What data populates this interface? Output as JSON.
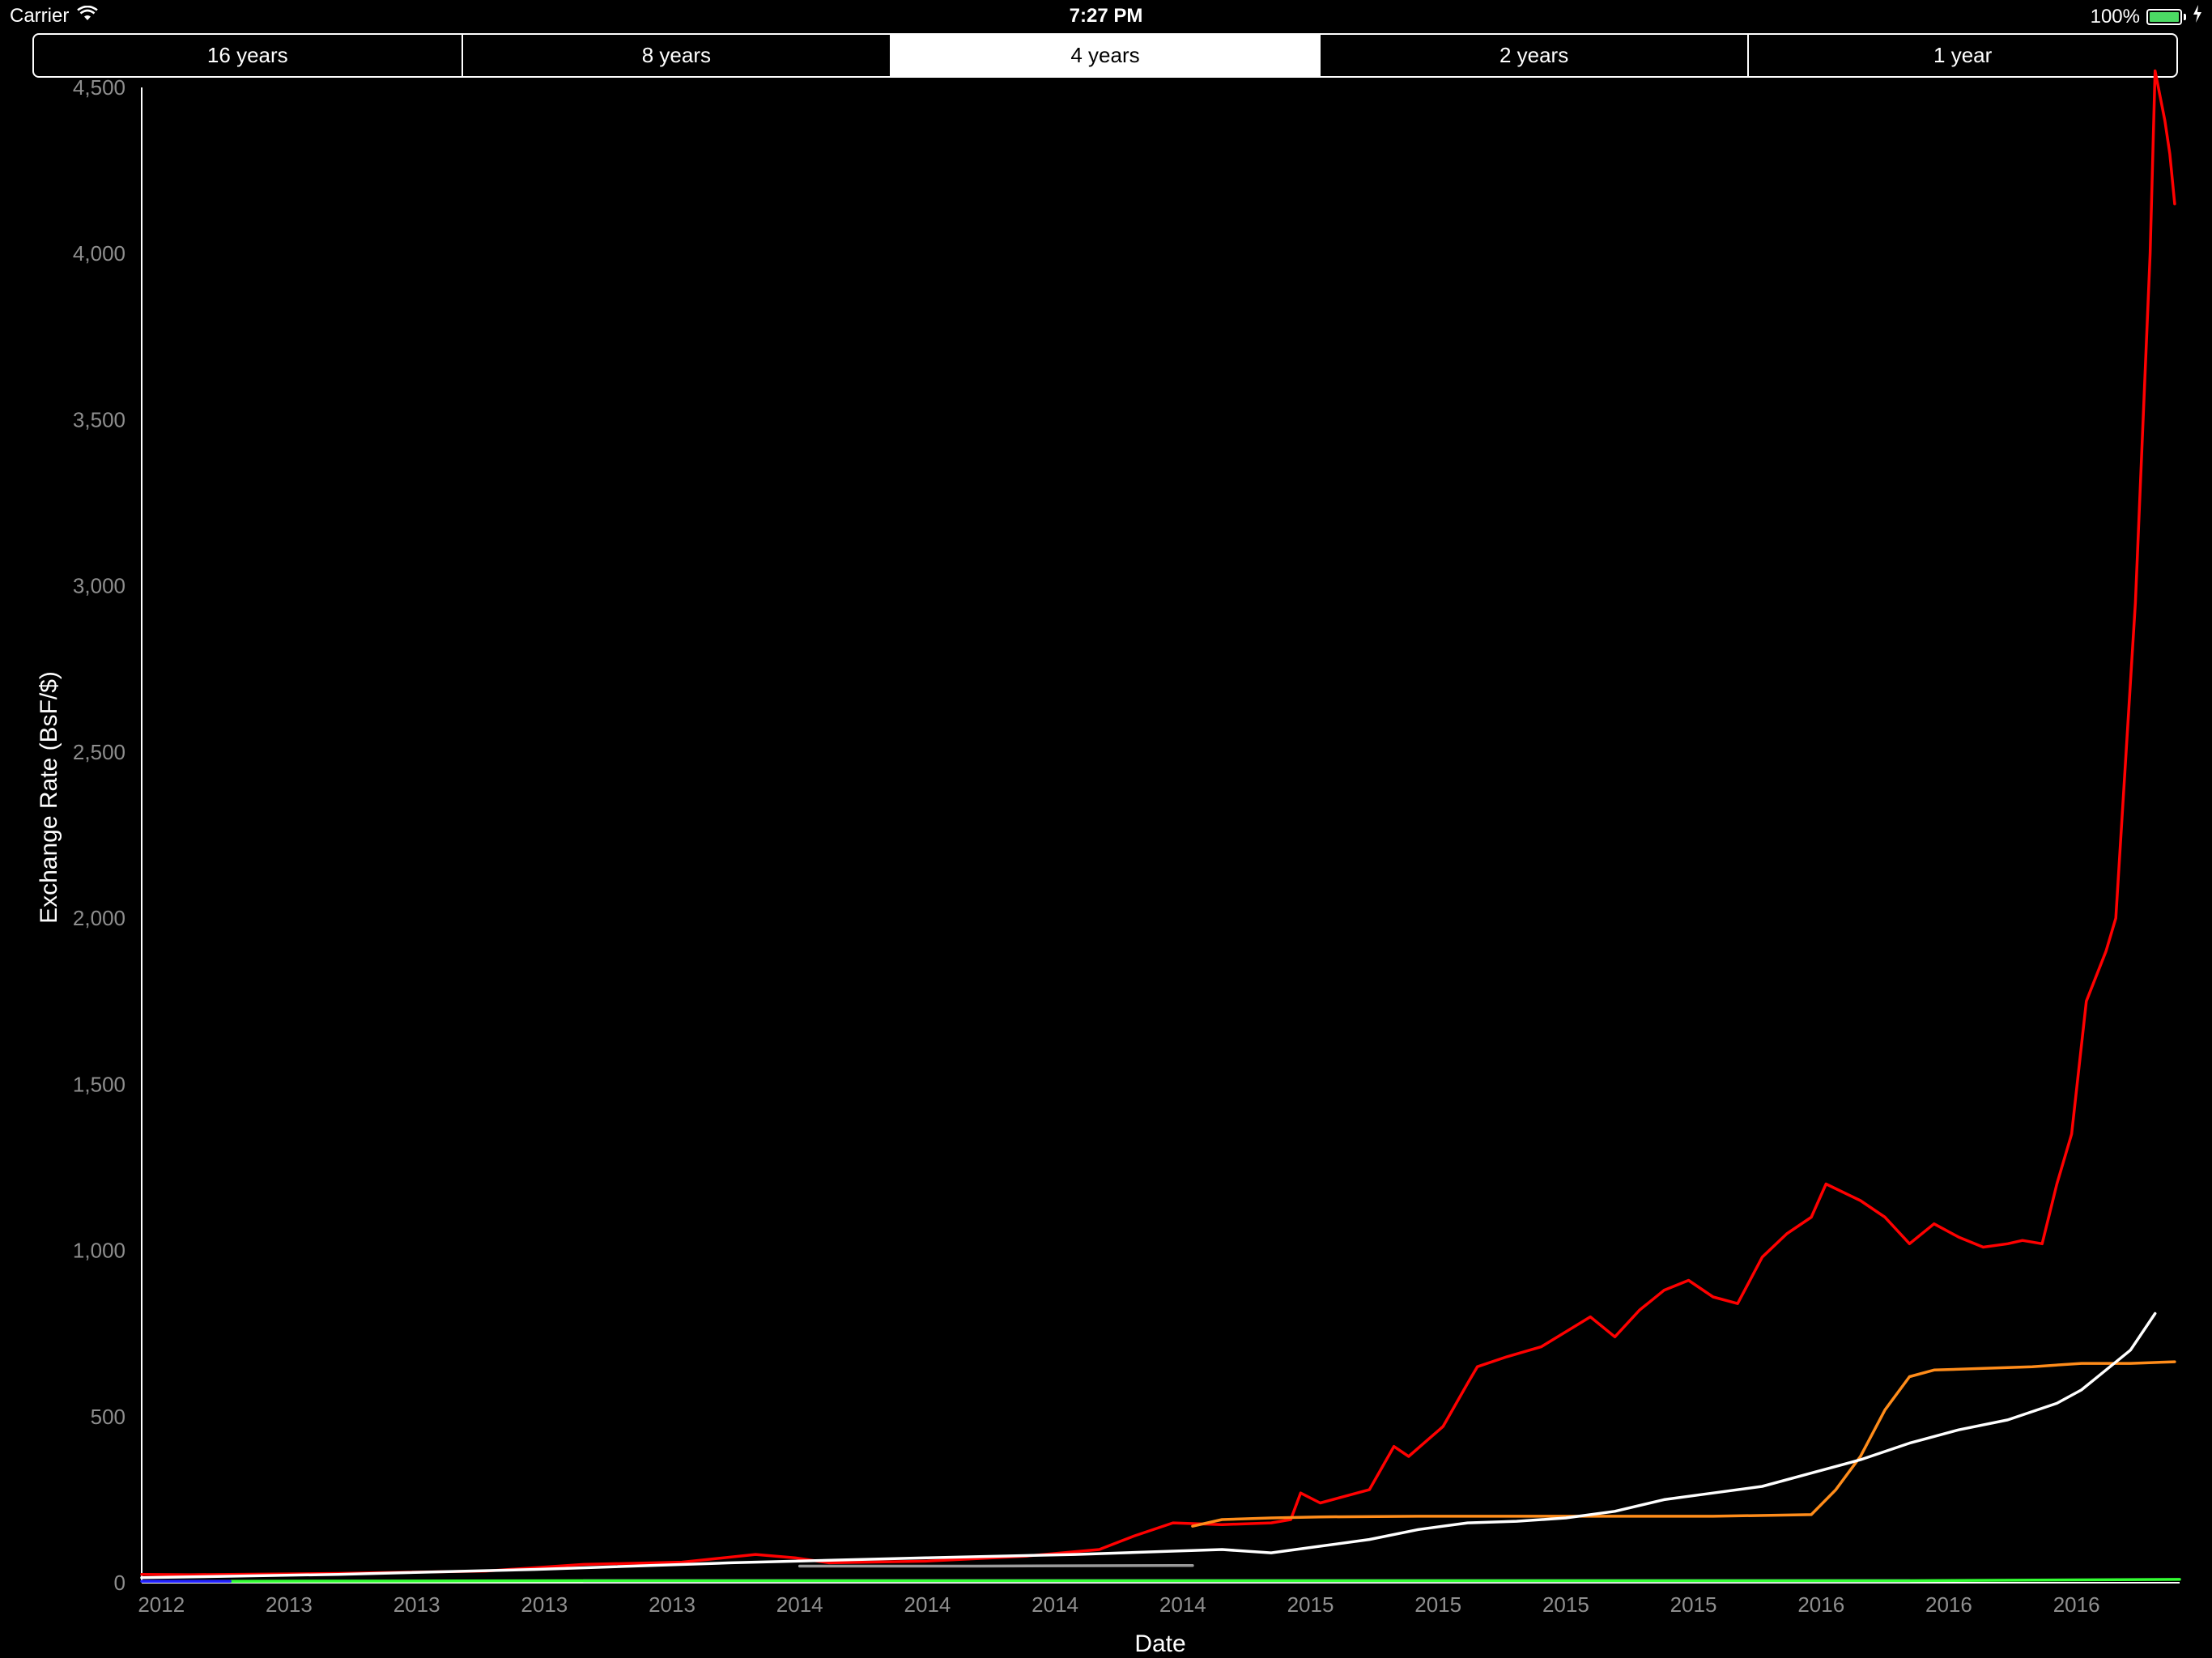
{
  "status_bar": {
    "carrier": "Carrier",
    "time": "7:27 PM",
    "battery": "100%",
    "battery_level": 1.0
  },
  "tabs": [
    {
      "label": "16 years",
      "selected": false
    },
    {
      "label": "8 years",
      "selected": false
    },
    {
      "label": "4 years",
      "selected": true
    },
    {
      "label": "2 years",
      "selected": false
    },
    {
      "label": "1 year",
      "selected": false
    }
  ],
  "chart_data": {
    "type": "line",
    "title": "",
    "xlabel": "Date",
    "ylabel": "Exchange Rate (BsF/$)",
    "xlim": [
      2012.6,
      2016.75
    ],
    "ylim": [
      0,
      4500
    ],
    "yticks": [
      0,
      500,
      1000,
      1500,
      2000,
      2500,
      3000,
      3500,
      4000,
      4500
    ],
    "ytick_labels": [
      "0",
      "500",
      "1,000",
      "1,500",
      "2,000",
      "2,500",
      "3,000",
      "3,500",
      "4,000",
      "4,500"
    ],
    "xticks": [
      {
        "x": 2012.64,
        "label": "2012"
      },
      {
        "x": 2012.9,
        "label": "2013"
      },
      {
        "x": 2013.16,
        "label": "2013"
      },
      {
        "x": 2013.42,
        "label": "2013"
      },
      {
        "x": 2013.68,
        "label": "2013"
      },
      {
        "x": 2013.94,
        "label": "2014"
      },
      {
        "x": 2014.2,
        "label": "2014"
      },
      {
        "x": 2014.46,
        "label": "2014"
      },
      {
        "x": 2014.72,
        "label": "2014"
      },
      {
        "x": 2014.98,
        "label": "2015"
      },
      {
        "x": 2015.24,
        "label": "2015"
      },
      {
        "x": 2015.5,
        "label": "2015"
      },
      {
        "x": 2015.76,
        "label": "2015"
      },
      {
        "x": 2016.02,
        "label": "2016"
      },
      {
        "x": 2016.28,
        "label": "2016"
      },
      {
        "x": 2016.54,
        "label": "2016"
      }
    ],
    "grid": false,
    "legend": "none",
    "series": [
      {
        "color": "#ff0000",
        "x": [
          2012.6,
          2012.7,
          2013.0,
          2013.3,
          2013.5,
          2013.7,
          2013.85,
          2013.93,
          2014.0,
          2014.2,
          2014.4,
          2014.55,
          2014.62,
          2014.7,
          2014.8,
          2014.9,
          2014.94,
          2014.96,
          2015.0,
          2015.1,
          2015.15,
          2015.18,
          2015.25,
          2015.3,
          2015.32,
          2015.38,
          2015.45,
          2015.55,
          2015.6,
          2015.65,
          2015.7,
          2015.75,
          2015.8,
          2015.85,
          2015.9,
          2015.95,
          2016.0,
          2016.03,
          2016.1,
          2016.15,
          2016.2,
          2016.25,
          2016.3,
          2016.35,
          2016.4,
          2016.43,
          2016.47,
          2016.5,
          2016.53,
          2016.56,
          2016.6,
          2016.62,
          2016.66,
          2016.69,
          2016.7,
          2016.72,
          2016.73,
          2016.74
        ],
        "y": [
          25,
          24,
          28,
          35,
          55,
          62,
          85,
          75,
          60,
          65,
          80,
          100,
          140,
          180,
          175,
          180,
          190,
          270,
          240,
          280,
          410,
          380,
          470,
          600,
          650,
          680,
          710,
          800,
          740,
          820,
          880,
          910,
          860,
          840,
          980,
          1050,
          1100,
          1200,
          1150,
          1100,
          1020,
          1080,
          1040,
          1010,
          1020,
          1030,
          1020,
          1200,
          1350,
          1750,
          1900,
          2000,
          2950,
          4000,
          4550,
          4400,
          4300,
          4150
        ]
      },
      {
        "color": "#ff8c1a",
        "x": [
          2014.74,
          2014.8,
          2014.9,
          2015.0,
          2015.2,
          2015.4,
          2015.6,
          2015.8,
          2016.0,
          2016.05,
          2016.1,
          2016.15,
          2016.2,
          2016.25,
          2016.35,
          2016.45,
          2016.55,
          2016.65,
          2016.74
        ],
        "y": [
          170,
          190,
          195,
          198,
          200,
          200,
          200,
          200,
          205,
          280,
          380,
          520,
          620,
          640,
          645,
          650,
          660,
          660,
          665
        ]
      },
      {
        "color": "#ffffff",
        "x": [
          2012.6,
          2013.0,
          2013.4,
          2013.8,
          2014.2,
          2014.5,
          2014.7,
          2014.8,
          2014.9,
          2015.0,
          2015.1,
          2015.2,
          2015.3,
          2015.4,
          2015.5,
          2015.6,
          2015.7,
          2015.8,
          2015.9,
          2016.0,
          2016.1,
          2016.2,
          2016.3,
          2016.4,
          2016.5,
          2016.55,
          2016.6,
          2016.65,
          2016.7
        ],
        "y": [
          15,
          25,
          40,
          60,
          75,
          85,
          95,
          100,
          90,
          110,
          130,
          160,
          180,
          185,
          195,
          215,
          250,
          270,
          290,
          330,
          370,
          420,
          460,
          490,
          540,
          580,
          640,
          700,
          810
        ]
      },
      {
        "color": "#999999",
        "x": [
          2013.94,
          2014.3,
          2014.7,
          2014.74
        ],
        "y": [
          50,
          50,
          52,
          52
        ]
      },
      {
        "color": "#a020f0",
        "x": [
          2013.5,
          2014.5,
          2015.5,
          2016.2
        ],
        "y": [
          6,
          6,
          6,
          6
        ]
      },
      {
        "color": "#33ff33",
        "x": [
          2012.78,
          2013.5,
          2014.5,
          2015.5,
          2016.2,
          2016.75
        ],
        "y": [
          4.3,
          6,
          6,
          6,
          6,
          10
        ]
      },
      {
        "color": "#2222ff",
        "x": [
          2012.6,
          2012.78
        ],
        "y": [
          4.3,
          4.3
        ]
      }
    ]
  }
}
